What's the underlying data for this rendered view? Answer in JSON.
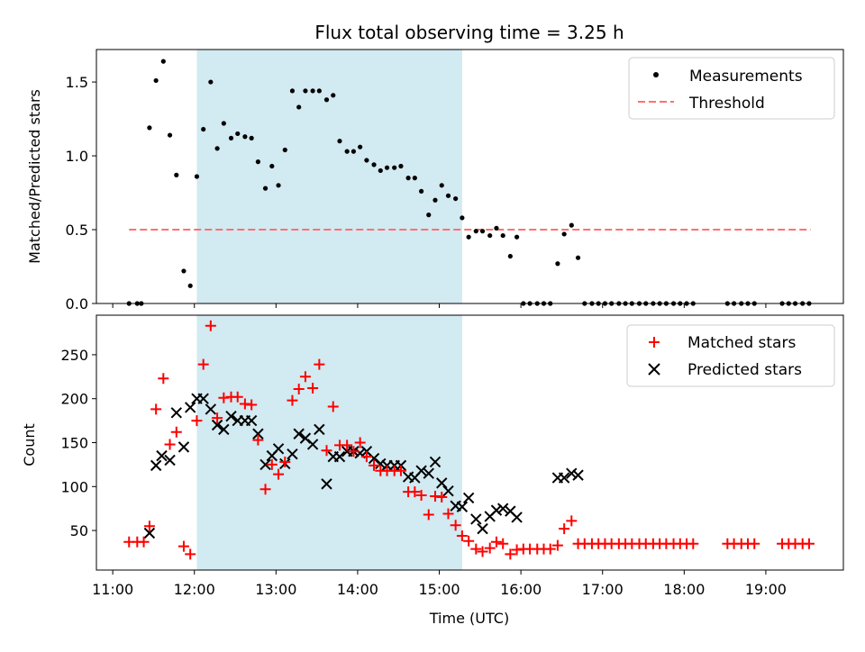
{
  "title": "Flux total observing time = 3.25 h",
  "colors": {
    "measurement": "#000000",
    "threshold": "#ff7070",
    "matched": "#ff0000",
    "predicted": "#000000",
    "shade": "#add8e6"
  },
  "chart_data": [
    {
      "type": "scatter",
      "title": "Flux total observing time = 3.25 h",
      "xlabel": "",
      "ylabel": "Matched/Predicted stars",
      "x_unit": "hours (UTC)",
      "xlim": [
        10.8,
        19.95
      ],
      "ylim": [
        0,
        1.72
      ],
      "yticks": [
        0.0,
        0.5,
        1.0,
        1.5
      ],
      "ytick_labels": [
        "0.0",
        "0.5",
        "1.0",
        "1.5"
      ],
      "shaded_interval": [
        12.03,
        15.28
      ],
      "legend": {
        "placement": "top-right",
        "entries": [
          "Measurements",
          "Threshold"
        ]
      },
      "threshold": {
        "name": "Threshold",
        "value": 0.5,
        "x_range": [
          11.2,
          19.55
        ]
      },
      "series": [
        {
          "name": "Measurements",
          "marker": "dot",
          "points": [
            [
              11.2,
              0
            ],
            [
              11.3,
              0
            ],
            [
              11.35,
              0
            ],
            [
              11.45,
              1.19
            ],
            [
              11.53,
              1.51
            ],
            [
              11.62,
              1.64
            ],
            [
              11.7,
              1.14
            ],
            [
              11.78,
              0.87
            ],
            [
              11.87,
              0.22
            ],
            [
              11.95,
              0.12
            ],
            [
              12.03,
              0.86
            ],
            [
              12.11,
              1.18
            ],
            [
              12.2,
              1.5
            ],
            [
              12.28,
              1.05
            ],
            [
              12.36,
              1.22
            ],
            [
              12.45,
              1.12
            ],
            [
              12.53,
              1.15
            ],
            [
              12.62,
              1.13
            ],
            [
              12.7,
              1.12
            ],
            [
              12.78,
              0.96
            ],
            [
              12.87,
              0.78
            ],
            [
              12.95,
              0.93
            ],
            [
              13.03,
              0.8
            ],
            [
              13.11,
              1.04
            ],
            [
              13.2,
              1.44
            ],
            [
              13.28,
              1.33
            ],
            [
              13.36,
              1.44
            ],
            [
              13.45,
              1.44
            ],
            [
              13.53,
              1.44
            ],
            [
              13.62,
              1.38
            ],
            [
              13.7,
              1.41
            ],
            [
              13.78,
              1.1
            ],
            [
              13.87,
              1.03
            ],
            [
              13.95,
              1.03
            ],
            [
              14.03,
              1.06
            ],
            [
              14.11,
              0.97
            ],
            [
              14.2,
              0.94
            ],
            [
              14.28,
              0.9
            ],
            [
              14.36,
              0.92
            ],
            [
              14.45,
              0.92
            ],
            [
              14.53,
              0.93
            ],
            [
              14.62,
              0.85
            ],
            [
              14.7,
              0.85
            ],
            [
              14.78,
              0.76
            ],
            [
              14.87,
              0.6
            ],
            [
              14.95,
              0.7
            ],
            [
              15.03,
              0.8
            ],
            [
              15.11,
              0.73
            ],
            [
              15.2,
              0.71
            ],
            [
              15.28,
              0.58
            ],
            [
              15.36,
              0.45
            ],
            [
              15.45,
              0.49
            ],
            [
              15.53,
              0.49
            ],
            [
              15.62,
              0.46
            ],
            [
              15.7,
              0.51
            ],
            [
              15.78,
              0.46
            ],
            [
              15.87,
              0.32
            ],
            [
              15.95,
              0.45
            ],
            [
              16.03,
              0
            ],
            [
              16.11,
              0
            ],
            [
              16.2,
              0
            ],
            [
              16.28,
              0
            ],
            [
              16.36,
              0
            ],
            [
              16.45,
              0.27
            ],
            [
              16.53,
              0.47
            ],
            [
              16.62,
              0.53
            ],
            [
              16.7,
              0.31
            ],
            [
              16.78,
              0
            ],
            [
              16.87,
              0
            ],
            [
              16.95,
              0
            ],
            [
              17.03,
              0
            ],
            [
              17.11,
              0
            ],
            [
              17.2,
              0
            ],
            [
              17.28,
              0
            ],
            [
              17.36,
              0
            ],
            [
              17.45,
              0
            ],
            [
              17.53,
              0
            ],
            [
              17.62,
              0
            ],
            [
              17.7,
              0
            ],
            [
              17.78,
              0
            ],
            [
              17.87,
              0
            ],
            [
              17.95,
              0
            ],
            [
              18.03,
              0
            ],
            [
              18.11,
              0
            ],
            [
              18.53,
              0
            ],
            [
              18.61,
              0
            ],
            [
              18.7,
              0
            ],
            [
              18.78,
              0
            ],
            [
              18.86,
              0
            ],
            [
              19.2,
              0
            ],
            [
              19.28,
              0
            ],
            [
              19.36,
              0
            ],
            [
              19.45,
              0
            ],
            [
              19.53,
              0
            ]
          ]
        }
      ]
    },
    {
      "type": "scatter",
      "xlabel": "Time (UTC)",
      "ylabel": "Count",
      "x_unit": "hours (UTC)",
      "xlim": [
        10.8,
        19.95
      ],
      "ylim": [
        5,
        295
      ],
      "yticks": [
        50,
        100,
        150,
        200,
        250
      ],
      "ytick_labels": [
        "50",
        "100",
        "150",
        "200",
        "250"
      ],
      "xticks": [
        11,
        12,
        13,
        14,
        15,
        16,
        17,
        18,
        19
      ],
      "xtick_labels": [
        "11:00",
        "12:00",
        "13:00",
        "14:00",
        "15:00",
        "16:00",
        "17:00",
        "18:00",
        "19:00"
      ],
      "shaded_interval": [
        12.03,
        15.28
      ],
      "legend": {
        "placement": "top-right",
        "entries": [
          "Matched stars",
          "Predicted stars"
        ]
      },
      "series": [
        {
          "name": "Matched stars",
          "marker": "plus",
          "points": [
            [
              11.2,
              37
            ],
            [
              11.3,
              37
            ],
            [
              11.38,
              37
            ],
            [
              11.45,
              55
            ],
            [
              11.53,
              188
            ],
            [
              11.62,
              223
            ],
            [
              11.7,
              148
            ],
            [
              11.78,
              162
            ],
            [
              11.87,
              32
            ],
            [
              11.95,
              23
            ],
            [
              12.03,
              175
            ],
            [
              12.11,
              239
            ],
            [
              12.2,
              283
            ],
            [
              12.28,
              178
            ],
            [
              12.36,
              201
            ],
            [
              12.45,
              202
            ],
            [
              12.53,
              202
            ],
            [
              12.62,
              194
            ],
            [
              12.7,
              193
            ],
            [
              12.78,
              153
            ],
            [
              12.87,
              97
            ],
            [
              12.95,
              125
            ],
            [
              13.03,
              114
            ],
            [
              13.11,
              128
            ],
            [
              13.2,
              198
            ],
            [
              13.28,
              211
            ],
            [
              13.36,
              225
            ],
            [
              13.45,
              212
            ],
            [
              13.53,
              239
            ],
            [
              13.62,
              141
            ],
            [
              13.7,
              191
            ],
            [
              13.78,
              147
            ],
            [
              13.87,
              147
            ],
            [
              13.95,
              140
            ],
            [
              14.03,
              150
            ],
            [
              14.11,
              134
            ],
            [
              14.2,
              124
            ],
            [
              14.28,
              118
            ],
            [
              14.36,
              118
            ],
            [
              14.45,
              118
            ],
            [
              14.53,
              118
            ],
            [
              14.62,
              94
            ],
            [
              14.7,
              94
            ],
            [
              14.78,
              90
            ],
            [
              14.87,
              68
            ],
            [
              14.95,
              89
            ],
            [
              15.03,
              88
            ],
            [
              15.11,
              69
            ],
            [
              15.2,
              56
            ],
            [
              15.28,
              44
            ],
            [
              15.36,
              38
            ],
            [
              15.45,
              29
            ],
            [
              15.53,
              26
            ],
            [
              15.62,
              30
            ],
            [
              15.7,
              37
            ],
            [
              15.78,
              35
            ],
            [
              15.87,
              23
            ],
            [
              15.95,
              28
            ],
            [
              16.03,
              29
            ],
            [
              16.11,
              29
            ],
            [
              16.2,
              29
            ],
            [
              16.28,
              29
            ],
            [
              16.36,
              29
            ],
            [
              16.45,
              33
            ],
            [
              16.53,
              52
            ],
            [
              16.62,
              61
            ],
            [
              16.7,
              35
            ],
            [
              16.78,
              35
            ],
            [
              16.87,
              35
            ],
            [
              16.95,
              35
            ],
            [
              17.03,
              35
            ],
            [
              17.11,
              35
            ],
            [
              17.2,
              35
            ],
            [
              17.28,
              35
            ],
            [
              17.36,
              35
            ],
            [
              17.45,
              35
            ],
            [
              17.53,
              35
            ],
            [
              17.62,
              35
            ],
            [
              17.7,
              35
            ],
            [
              17.78,
              35
            ],
            [
              17.87,
              35
            ],
            [
              17.95,
              35
            ],
            [
              18.03,
              35
            ],
            [
              18.11,
              35
            ],
            [
              18.53,
              35
            ],
            [
              18.61,
              35
            ],
            [
              18.7,
              35
            ],
            [
              18.78,
              35
            ],
            [
              18.86,
              35
            ],
            [
              19.2,
              35
            ],
            [
              19.28,
              35
            ],
            [
              19.36,
              35
            ],
            [
              19.45,
              35
            ],
            [
              19.53,
              35
            ]
          ]
        },
        {
          "name": "Predicted stars",
          "marker": "x",
          "points": [
            [
              11.45,
              47
            ],
            [
              11.53,
              124
            ],
            [
              11.6,
              135
            ],
            [
              11.7,
              130
            ],
            [
              11.78,
              184
            ],
            [
              11.87,
              145
            ],
            [
              11.95,
              190
            ],
            [
              12.03,
              200
            ],
            [
              12.11,
              200
            ],
            [
              12.2,
              188
            ],
            [
              12.28,
              170
            ],
            [
              12.36,
              165
            ],
            [
              12.45,
              180
            ],
            [
              12.53,
              175
            ],
            [
              12.62,
              175
            ],
            [
              12.7,
              175
            ],
            [
              12.78,
              160
            ],
            [
              12.87,
              125
            ],
            [
              12.95,
              135
            ],
            [
              13.03,
              143
            ],
            [
              13.11,
              126
            ],
            [
              13.2,
              137
            ],
            [
              13.28,
              160
            ],
            [
              13.36,
              155
            ],
            [
              13.45,
              148
            ],
            [
              13.53,
              165
            ],
            [
              13.62,
              103
            ],
            [
              13.7,
              134
            ],
            [
              13.78,
              134
            ],
            [
              13.87,
              140
            ],
            [
              13.95,
              140
            ],
            [
              14.03,
              138
            ],
            [
              14.11,
              140
            ],
            [
              14.2,
              132
            ],
            [
              14.28,
              126
            ],
            [
              14.36,
              124
            ],
            [
              14.45,
              124
            ],
            [
              14.53,
              124
            ],
            [
              14.62,
              111
            ],
            [
              14.7,
              110
            ],
            [
              14.78,
              118
            ],
            [
              14.87,
              115
            ],
            [
              14.95,
              128
            ],
            [
              15.03,
              104
            ],
            [
              15.11,
              95
            ],
            [
              15.2,
              78
            ],
            [
              15.28,
              77
            ],
            [
              15.36,
              87
            ],
            [
              15.45,
              63
            ],
            [
              15.53,
              52
            ],
            [
              15.62,
              66
            ],
            [
              15.7,
              73
            ],
            [
              15.78,
              75
            ],
            [
              15.87,
              72
            ],
            [
              15.95,
              65
            ],
            [
              16.45,
              110
            ],
            [
              16.53,
              110
            ],
            [
              16.62,
              115
            ],
            [
              16.7,
              113
            ]
          ]
        }
      ]
    }
  ]
}
